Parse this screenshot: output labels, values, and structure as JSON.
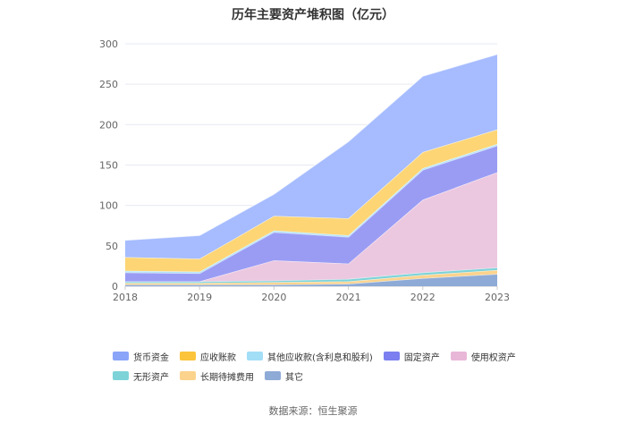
{
  "chart_data": {
    "type": "area",
    "stacked": true,
    "title": "历年主要资产堆积图（亿元）",
    "x": [
      "2018",
      "2019",
      "2020",
      "2021",
      "2022",
      "2023"
    ],
    "ylim": [
      0,
      300
    ],
    "yticks": [
      0,
      50,
      100,
      150,
      200,
      250,
      300
    ],
    "series": [
      {
        "name": "其它",
        "color": "#8eaad6",
        "values": [
          2,
          2,
          2,
          3,
          10,
          15
        ]
      },
      {
        "name": "长期待摊费用",
        "color": "#fbd38d",
        "values": [
          2,
          2,
          3,
          3,
          4,
          5
        ]
      },
      {
        "name": "无形资产",
        "color": "#7dd3d8",
        "values": [
          2,
          2,
          2,
          3,
          3,
          3
        ]
      },
      {
        "name": "使用权资产",
        "color": "#ecc8e0",
        "values": [
          0,
          0,
          25,
          19,
          90,
          118
        ]
      },
      {
        "name": "固定资产",
        "color": "#9a9cf4",
        "values": [
          11,
          10,
          35,
          33,
          37,
          33
        ]
      },
      {
        "name": "其他应收款(含利息和股利)",
        "color": "#b0e4f8",
        "values": [
          2,
          2,
          2,
          2,
          2,
          2
        ]
      },
      {
        "name": "应收账款",
        "color": "#fdd575",
        "values": [
          17,
          16,
          18,
          21,
          20,
          18
        ]
      },
      {
        "name": "货币资金",
        "color": "#a6bcff",
        "values": [
          21,
          29,
          27,
          95,
          94,
          93
        ]
      }
    ]
  },
  "legend": [
    {
      "label": "货币资金",
      "color": "#8aa4f8"
    },
    {
      "label": "应收账款",
      "color": "#fbc43a"
    },
    {
      "label": "其他应收款(含利息和股利)",
      "color": "#a3def7"
    },
    {
      "label": "固定资产",
      "color": "#7b7ff0"
    },
    {
      "label": "使用权资产",
      "color": "#e8b7d8"
    },
    {
      "label": "无形资产",
      "color": "#7dd3d8"
    },
    {
      "label": "长期待摊费用",
      "color": "#fbd38d"
    },
    {
      "label": "其它",
      "color": "#8eaad6"
    }
  ],
  "source": "数据来源：恒生聚源"
}
